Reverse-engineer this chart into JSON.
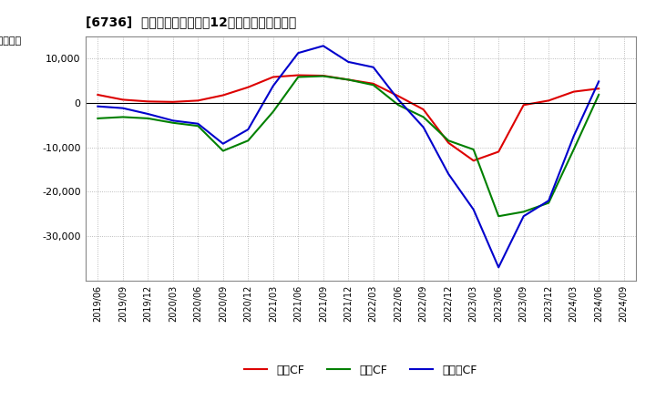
{
  "title": "[6736]  キャッシュフローの12か月移動合計の推移",
  "ylabel": "（百万円）",
  "background_color": "#ffffff",
  "plot_bg_color": "#ffffff",
  "grid_color": "#aaaaaa",
  "x_labels": [
    "2019/06",
    "2019/09",
    "2019/12",
    "2020/03",
    "2020/06",
    "2020/09",
    "2020/12",
    "2021/03",
    "2021/06",
    "2021/09",
    "2021/12",
    "2022/03",
    "2022/06",
    "2022/09",
    "2022/12",
    "2023/03",
    "2023/06",
    "2023/09",
    "2023/12",
    "2024/03",
    "2024/06",
    "2024/09"
  ],
  "operating_cf": [
    1800,
    700,
    300,
    200,
    500,
    1700,
    3500,
    5800,
    6200,
    6100,
    5200,
    4300,
    1500,
    -1500,
    -9000,
    -13000,
    -11000,
    -500,
    500,
    2500,
    3200,
    null
  ],
  "investing_cf": [
    -3500,
    -3200,
    -3500,
    -4500,
    -5200,
    -10800,
    -8500,
    -2000,
    5800,
    6000,
    5200,
    4000,
    -500,
    -3200,
    -8500,
    -10500,
    -25500,
    -24500,
    -22500,
    -10500,
    1800,
    null
  ],
  "free_cf": [
    -800,
    -1200,
    -2500,
    -4000,
    -4700,
    -9200,
    -6000,
    3800,
    11200,
    12800,
    9200,
    8000,
    700,
    -5500,
    -16000,
    -24000,
    -37000,
    -25500,
    -22000,
    -7500,
    4800,
    null
  ],
  "operating_color": "#dd0000",
  "investing_color": "#008000",
  "free_color": "#0000cc",
  "ylim": [
    -40000,
    15000
  ],
  "yticks": [
    -30000,
    -20000,
    -10000,
    0,
    10000
  ],
  "legend_labels": [
    "営業CF",
    "投資CF",
    "フリーCF"
  ]
}
